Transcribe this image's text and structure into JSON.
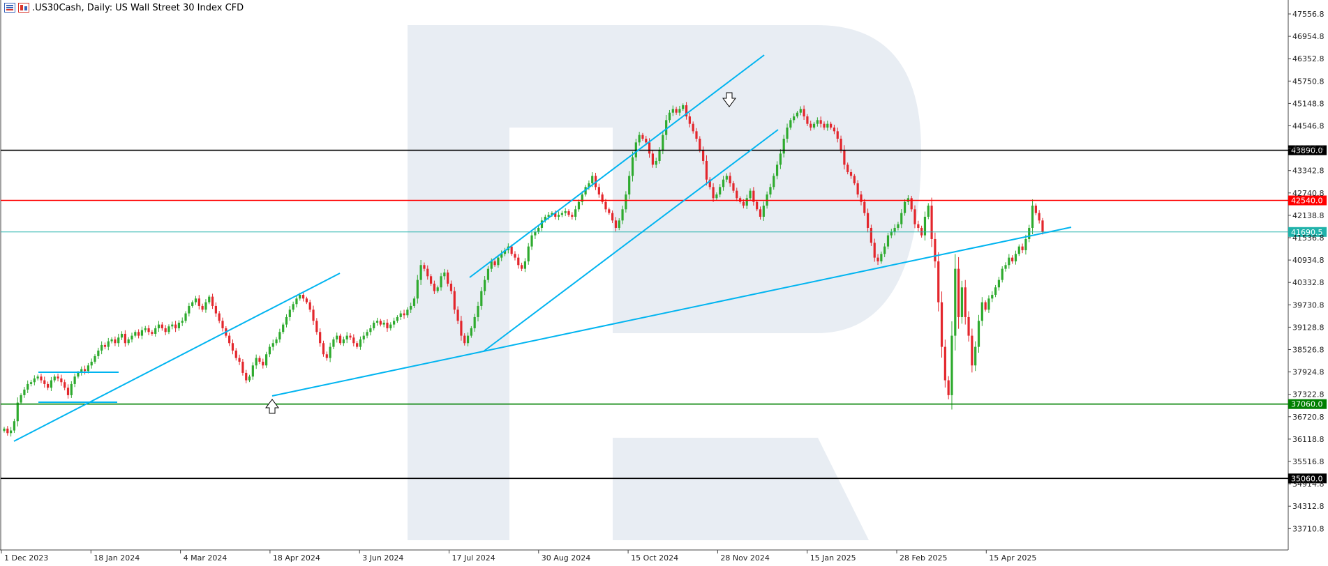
{
  "header": {
    "symbol": ".US30Cash, Daily:",
    "description": "US Wall Street 30 Index CFD"
  },
  "chart_data": {
    "type": "candlestick",
    "title": ".US30Cash, Daily: US Wall Street 30 Index CFD",
    "price_axis_ticks": [
      47556.8,
      46954.8,
      46352.8,
      45750.8,
      45148.8,
      44546.8,
      43944.8,
      43342.8,
      42740.8,
      42138.8,
      41536.8,
      40934.8,
      40332.8,
      39730.8,
      39128.8,
      38526.8,
      37924.8,
      37322.8,
      36720.8,
      36118.8,
      35516.8,
      34914.8,
      34312.8,
      33710.8
    ],
    "date_labels": [
      "1 Dec 2023",
      "18 Jan 2024",
      "4 Mar 2024",
      "18 Apr 2024",
      "3 Jun 2024",
      "17 Jul 2024",
      "30 Aug 2024",
      "15 Oct 2024",
      "28 Nov 2024",
      "15 Jan 2025",
      "28 Feb 2025",
      "15 Apr 2025"
    ],
    "horizontal_levels": [
      {
        "price": 43890.0,
        "label": "43890.0",
        "color": "#000000"
      },
      {
        "price": 42540.0,
        "label": "42540.0",
        "color": "#ff0000"
      },
      {
        "price": 41690.5,
        "label": "41690.5",
        "color": "#20b2aa"
      },
      {
        "price": 37060.0,
        "label": "37060.0",
        "color": "#008000"
      },
      {
        "price": 35060.0,
        "label": "35060.0",
        "color": "#000000"
      }
    ],
    "close_series": [
      36400,
      36280,
      36350,
      36600,
      37100,
      37300,
      37450,
      37600,
      37650,
      37750,
      37800,
      37700,
      37600,
      37500,
      37700,
      37800,
      37750,
      37650,
      37500,
      37300,
      37600,
      37800,
      37900,
      38000,
      37950,
      38100,
      38200,
      38350,
      38500,
      38650,
      38600,
      38750,
      38800,
      38700,
      38850,
      38950,
      38700,
      38800,
      38900,
      39000,
      38900,
      39050,
      39100,
      39000,
      38950,
      39100,
      39200,
      39100,
      39000,
      39150,
      39200,
      39100,
      39250,
      39300,
      39500,
      39700,
      39800,
      39900,
      39700,
      39600,
      39800,
      39950,
      39700,
      39500,
      39300,
      39100,
      38900,
      38700,
      38500,
      38300,
      38200,
      37900,
      37700,
      37800,
      38100,
      38300,
      38200,
      38100,
      38400,
      38600,
      38700,
      38800,
      39000,
      39200,
      39400,
      39600,
      39750,
      39900,
      40000,
      39900,
      39800,
      39600,
      39300,
      39000,
      38700,
      38400,
      38300,
      38600,
      38800,
      38900,
      38700,
      38800,
      38900,
      38850,
      38700,
      38600,
      38800,
      38900,
      39000,
      39100,
      39250,
      39300,
      39200,
      39250,
      39100,
      39200,
      39300,
      39400,
      39500,
      39450,
      39600,
      39700,
      39900,
      40400,
      40800,
      40700,
      40500,
      40300,
      40100,
      40200,
      40500,
      40600,
      40300,
      40100,
      39600,
      39300,
      38900,
      38700,
      38900,
      39100,
      39400,
      39700,
      40100,
      40400,
      40700,
      40900,
      40800,
      41000,
      41100,
      41200,
      41300,
      41100,
      41000,
      40800,
      40700,
      40900,
      41300,
      41600,
      41700,
      41800,
      42000,
      42100,
      42150,
      42200,
      42100,
      42150,
      42200,
      42250,
      42150,
      42100,
      42300,
      42500,
      42700,
      42900,
      43000,
      43200,
      42900,
      42700,
      42500,
      42300,
      42200,
      42000,
      41800,
      42000,
      42300,
      42700,
      43200,
      43700,
      44100,
      44300,
      44200,
      44100,
      43800,
      43500,
      43600,
      43900,
      44300,
      44700,
      44900,
      45000,
      44900,
      45000,
      45100,
      44800,
      44600,
      44400,
      44200,
      43900,
      43600,
      43100,
      42900,
      42600,
      42700,
      42900,
      43100,
      43200,
      43000,
      42800,
      42600,
      42500,
      42400,
      42600,
      42800,
      42500,
      42300,
      42100,
      42400,
      42700,
      42900,
      43200,
      43500,
      43800,
      44200,
      44500,
      44700,
      44800,
      44900,
      45000,
      44800,
      44600,
      44500,
      44600,
      44700,
      44600,
      44500,
      44600,
      44500,
      44400,
      44200,
      43900,
      43500,
      43300,
      43200,
      43000,
      42700,
      42500,
      42200,
      41800,
      41400,
      41000,
      40900,
      41100,
      41300,
      41600,
      41700,
      41800,
      41900,
      42200,
      42500,
      42600,
      42300,
      41900,
      41800,
      41600,
      42100,
      42400,
      41500,
      40900,
      39800,
      38600,
      37700,
      37300,
      38900,
      40700,
      39400,
      40200,
      39400,
      38900,
      38100,
      38600,
      39300,
      39800,
      39600,
      39900,
      40000,
      40200,
      40400,
      40700,
      40800,
      41000,
      40900,
      41100,
      41300,
      41200,
      41500,
      41800,
      42400,
      42200,
      42000,
      41690.5
    ]
  },
  "colors": {
    "bull": "#2eaa2e",
    "bear": "#e3262c",
    "trendline": "#00b4f0",
    "watermark": "#e8edf3",
    "axis_text": "#222222"
  },
  "icons": [
    "chart-type-icon",
    "symbol-icon",
    "down-arrow-icon",
    "up-arrow-icon"
  ]
}
